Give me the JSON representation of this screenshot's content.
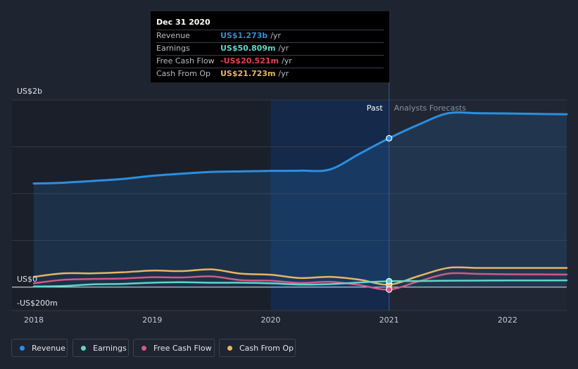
{
  "chart_data": {
    "type": "line",
    "x_unit": "year",
    "y_unit": "US$ millions",
    "xlim": [
      2018,
      2022.5
    ],
    "ylim": [
      -200,
      1600
    ],
    "x_ticks": [
      {
        "value": 2018,
        "label": "2018"
      },
      {
        "value": 2019,
        "label": "2019"
      },
      {
        "value": 2020,
        "label": "2020"
      },
      {
        "value": 2021,
        "label": "2021"
      },
      {
        "value": 2022,
        "label": "2022"
      }
    ],
    "y_labels": [
      {
        "value": 1600,
        "label": "US$2b"
      },
      {
        "value": 0,
        "label": "US$0"
      },
      {
        "value": -200,
        "label": "-US$200m"
      }
    ],
    "divider_x": 2021,
    "shade_start_x": 2020,
    "past_label": "Past",
    "forecast_label": "Analysts Forecasts",
    "series": [
      {
        "name": "Revenue",
        "color": "#2b8fe0",
        "fill": true,
        "width": 3,
        "points": [
          [
            2018,
            886
          ],
          [
            2018.25,
            893
          ],
          [
            2018.5,
            908
          ],
          [
            2018.75,
            925
          ],
          [
            2019,
            952
          ],
          [
            2019.25,
            970
          ],
          [
            2019.5,
            985
          ],
          [
            2019.75,
            990
          ],
          [
            2020,
            994
          ],
          [
            2020.25,
            996
          ],
          [
            2020.5,
            1006
          ],
          [
            2020.75,
            1140
          ],
          [
            2021,
            1273
          ],
          [
            2021.25,
            1390
          ],
          [
            2021.5,
            1487
          ],
          [
            2021.75,
            1487
          ],
          [
            2022,
            1485
          ],
          [
            2022.25,
            1481
          ],
          [
            2022.5,
            1478
          ]
        ]
      },
      {
        "name": "Cash From Op",
        "color": "#e8b466",
        "fill": false,
        "width": 2.5,
        "points": [
          [
            2018,
            88
          ],
          [
            2018.25,
            118
          ],
          [
            2018.5,
            118
          ],
          [
            2018.75,
            127
          ],
          [
            2019,
            142
          ],
          [
            2019.25,
            137
          ],
          [
            2019.5,
            152
          ],
          [
            2019.75,
            115
          ],
          [
            2020,
            106
          ],
          [
            2020.25,
            78
          ],
          [
            2020.5,
            88
          ],
          [
            2020.75,
            64
          ],
          [
            2021,
            21.7
          ],
          [
            2021.25,
            95
          ],
          [
            2021.5,
            165
          ],
          [
            2021.75,
            164
          ],
          [
            2022,
            164
          ],
          [
            2022.25,
            164
          ],
          [
            2022.5,
            164
          ]
        ]
      },
      {
        "name": "Free Cash Flow",
        "color": "#d05a86",
        "fill": false,
        "width": 2.5,
        "points": [
          [
            2018,
            33
          ],
          [
            2018.25,
            63
          ],
          [
            2018.5,
            70
          ],
          [
            2018.75,
            74
          ],
          [
            2019,
            85
          ],
          [
            2019.25,
            83
          ],
          [
            2019.5,
            92
          ],
          [
            2019.75,
            60
          ],
          [
            2020,
            55
          ],
          [
            2020.25,
            36
          ],
          [
            2020.5,
            46
          ],
          [
            2020.75,
            18
          ],
          [
            2021,
            -20.5
          ],
          [
            2021.25,
            50
          ],
          [
            2021.5,
            116
          ],
          [
            2021.75,
            113
          ],
          [
            2022,
            110
          ],
          [
            2022.25,
            109
          ],
          [
            2022.5,
            108
          ]
        ]
      },
      {
        "name": "Earnings",
        "color": "#5fd6c8",
        "fill": false,
        "width": 2.5,
        "points": [
          [
            2018,
            6
          ],
          [
            2018.25,
            10
          ],
          [
            2018.5,
            24
          ],
          [
            2018.75,
            28
          ],
          [
            2019,
            38
          ],
          [
            2019.25,
            42
          ],
          [
            2019.5,
            38
          ],
          [
            2019.75,
            38
          ],
          [
            2020,
            33
          ],
          [
            2020.25,
            22
          ],
          [
            2020.5,
            26
          ],
          [
            2020.75,
            40
          ],
          [
            2021,
            50.8
          ],
          [
            2021.25,
            52
          ],
          [
            2021.5,
            55
          ],
          [
            2021.75,
            56
          ],
          [
            2022,
            57
          ],
          [
            2022.25,
            57
          ],
          [
            2022.5,
            58
          ]
        ]
      }
    ]
  },
  "tooltip": {
    "date": "Dec 31 2020",
    "rows": [
      {
        "label": "Revenue",
        "value": "US$1.273b",
        "unit": "/yr",
        "color": "#2b8fe0"
      },
      {
        "label": "Earnings",
        "value": "US$50.809m",
        "unit": "/yr",
        "color": "#5fd6c8"
      },
      {
        "label": "Free Cash Flow",
        "value": "-US$20.521m",
        "unit": "/yr",
        "color": "#e0454f"
      },
      {
        "label": "Cash From Op",
        "value": "US$21.723m",
        "unit": "/yr",
        "color": "#e8b466"
      }
    ]
  },
  "legend": [
    {
      "label": "Revenue",
      "color": "#2b8fe0"
    },
    {
      "label": "Earnings",
      "color": "#5fd6c8"
    },
    {
      "label": "Free Cash Flow",
      "color": "#d05a86"
    },
    {
      "label": "Cash From Op",
      "color": "#e8b466"
    }
  ]
}
